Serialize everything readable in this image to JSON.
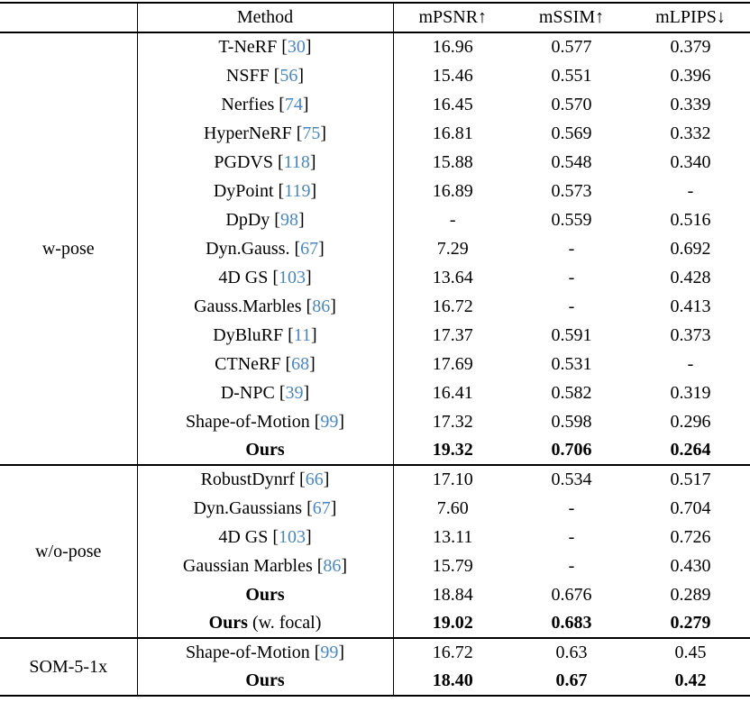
{
  "colors": {
    "citation_blue": "#4787c5",
    "text": "#000000",
    "background": "#ffffff",
    "rule": "#000000"
  },
  "table": {
    "cite_open": "[",
    "cite_close": "]",
    "header": {
      "group": "",
      "method": "Method",
      "mpsnr": "mPSNR↑",
      "mssim": "mSSIM↑",
      "mlpips": "mLPIPS↓"
    },
    "groups": [
      {
        "label": "w-pose",
        "rows": [
          {
            "name": "T-NeRF",
            "cite": "30",
            "mpsnr": "16.96",
            "mssim": "0.577",
            "mlpips": "0.379"
          },
          {
            "name": "NSFF",
            "cite": "56",
            "mpsnr": "15.46",
            "mssim": "0.551",
            "mlpips": "0.396"
          },
          {
            "name": "Nerfies",
            "cite": "74",
            "mpsnr": "16.45",
            "mssim": "0.570",
            "mlpips": "0.339"
          },
          {
            "name": "HyperNeRF",
            "cite": "75",
            "mpsnr": "16.81",
            "mssim": "0.569",
            "mlpips": "0.332"
          },
          {
            "name": "PGDVS",
            "cite": "118",
            "mpsnr": "15.88",
            "mssim": "0.548",
            "mlpips": "0.340"
          },
          {
            "name": "DyPoint",
            "cite": "119",
            "mpsnr": "16.89",
            "mssim": "0.573",
            "mlpips": "-"
          },
          {
            "name": "DpDy",
            "cite": "98",
            "mpsnr": "-",
            "mssim": "0.559",
            "mlpips": "0.516"
          },
          {
            "name": "Dyn.Gauss.",
            "cite": "67",
            "mpsnr": "7.29",
            "mssim": "-",
            "mlpips": "0.692"
          },
          {
            "name": "4D GS",
            "cite": "103",
            "mpsnr": "13.64",
            "mssim": "-",
            "mlpips": "0.428"
          },
          {
            "name": "Gauss.Marbles",
            "cite": "86",
            "mpsnr": "16.72",
            "mssim": "-",
            "mlpips": "0.413"
          },
          {
            "name": "DyBluRF",
            "cite": "11",
            "mpsnr": "17.37",
            "mssim": "0.591",
            "mlpips": "0.373"
          },
          {
            "name": "CTNeRF",
            "cite": "68",
            "mpsnr": "17.69",
            "mssim": "0.531",
            "mlpips": "-"
          },
          {
            "name": "D-NPC",
            "cite": "39",
            "mpsnr": "16.41",
            "mssim": "0.582",
            "mlpips": "0.319"
          },
          {
            "name": "Shape-of-Motion",
            "cite": "99",
            "mpsnr": "17.32",
            "mssim": "0.598",
            "mlpips": "0.296"
          },
          {
            "name": "Ours",
            "mpsnr": "19.32",
            "mssim": "0.706",
            "mlpips": "0.264"
          }
        ]
      },
      {
        "label": "w/o-pose",
        "rows": [
          {
            "name": "RobustDynrf",
            "cite": "66",
            "mpsnr": "17.10",
            "mssim": "0.534",
            "mlpips": "0.517"
          },
          {
            "name": "Dyn.Gaussians",
            "cite": "67",
            "mpsnr": "7.60",
            "mssim": "-",
            "mlpips": "0.704"
          },
          {
            "name": "4D GS",
            "cite": "103",
            "mpsnr": "13.11",
            "mssim": "-",
            "mlpips": "0.726"
          },
          {
            "name": "Gaussian Marbles",
            "cite": "86",
            "mpsnr": "15.79",
            "mssim": "-",
            "mlpips": "0.430"
          },
          {
            "name": "Ours",
            "mpsnr": "18.84",
            "mssim": "0.676",
            "mlpips": "0.289"
          },
          {
            "name": "Ours",
            "suffix": " (w. focal)",
            "mpsnr": "19.02",
            "mssim": "0.683",
            "mlpips": "0.279"
          }
        ]
      },
      {
        "label": "SOM-5-1x",
        "rows": [
          {
            "name": "Shape-of-Motion",
            "cite": "99",
            "mpsnr": "16.72",
            "mssim": "0.63",
            "mlpips": "0.45"
          },
          {
            "name": "Ours",
            "mpsnr": "18.40",
            "mssim": "0.67",
            "mlpips": "0.42"
          }
        ]
      }
    ]
  }
}
